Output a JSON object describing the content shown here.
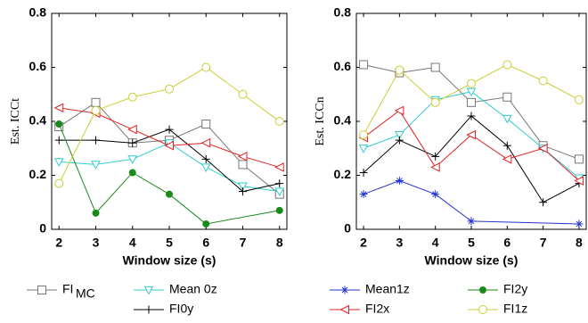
{
  "chart_data": [
    {
      "type": "line",
      "ylabel": "Est.  ICCt",
      "xlabel": "Window size (s)",
      "x": [
        2,
        3,
        4,
        5,
        6,
        7,
        8
      ],
      "xlim": [
        1.8,
        8.2
      ],
      "xticks": [
        2,
        3,
        4,
        5,
        6,
        7,
        8
      ],
      "ylim": [
        0,
        0.8
      ],
      "yticks": [
        0,
        0.2,
        0.4,
        0.6,
        0.8
      ],
      "series": [
        {
          "name": "FI",
          "name_subscript": "MC",
          "color": "#777777",
          "marker": "square",
          "values": [
            0.38,
            0.47,
            0.32,
            0.33,
            0.39,
            0.24,
            0.13
          ]
        },
        {
          "name": "Mean 0z",
          "color": "#33cccc",
          "marker": "triangle-down",
          "values": [
            0.25,
            0.24,
            0.26,
            0.32,
            0.23,
            0.16,
            0.14
          ]
        },
        {
          "name": "FI0y",
          "color": "#000000",
          "marker": "plus",
          "values": [
            0.33,
            0.33,
            0.32,
            0.37,
            0.26,
            0.14,
            0.17
          ]
        },
        {
          "name": "FI2x",
          "color": "#e02020",
          "marker": "triangle-left",
          "values": [
            0.45,
            0.43,
            0.37,
            0.31,
            0.32,
            0.27,
            0.23
          ]
        },
        {
          "name": "FI2y",
          "color": "#1a8a1a",
          "marker": "dot",
          "x": [
            2,
            3,
            4,
            5,
            6,
            8
          ],
          "values": [
            0.39,
            0.06,
            0.21,
            0.13,
            0.02,
            0.07
          ]
        },
        {
          "name": "FI1z",
          "color": "#cccc33",
          "marker": "circle",
          "values": [
            0.17,
            0.44,
            0.49,
            0.52,
            0.6,
            0.5,
            0.4
          ]
        }
      ]
    },
    {
      "type": "line",
      "ylabel": "Est.  ICCn",
      "xlabel": "Window size (s)",
      "x": [
        2,
        3,
        4,
        5,
        6,
        7,
        8
      ],
      "xlim": [
        1.8,
        8.2
      ],
      "xticks": [
        2,
        3,
        4,
        5,
        6,
        7,
        8
      ],
      "ylim": [
        0,
        0.8
      ],
      "yticks": [
        0,
        0.2,
        0.4,
        0.6,
        0.8
      ],
      "series": [
        {
          "name": "FI",
          "name_subscript": "MC",
          "color": "#777777",
          "marker": "square",
          "values": [
            0.61,
            0.58,
            0.6,
            0.47,
            0.49,
            0.31,
            0.26
          ]
        },
        {
          "name": "Mean 0z",
          "color": "#33cccc",
          "marker": "triangle-down",
          "values": [
            0.3,
            0.35,
            0.48,
            0.51,
            0.41,
            0.3,
            0.19
          ]
        },
        {
          "name": "FI0y",
          "color": "#000000",
          "marker": "plus",
          "values": [
            0.21,
            0.33,
            0.27,
            0.42,
            0.31,
            0.1,
            0.17
          ]
        },
        {
          "name": "FI2x",
          "color": "#e02020",
          "marker": "triangle-left",
          "values": [
            0.34,
            0.44,
            0.23,
            0.35,
            0.26,
            0.3,
            0.18
          ]
        },
        {
          "name": "Mean1z",
          "color": "#2233cc",
          "marker": "star",
          "x": [
            2,
            3,
            4,
            5,
            8
          ],
          "values": [
            0.13,
            0.18,
            0.13,
            0.03,
            0.02
          ]
        },
        {
          "name": "FI1z",
          "color": "#cccc33",
          "marker": "circle",
          "values": [
            0.35,
            0.59,
            0.47,
            0.54,
            0.61,
            0.55,
            0.48
          ]
        }
      ]
    }
  ]
}
